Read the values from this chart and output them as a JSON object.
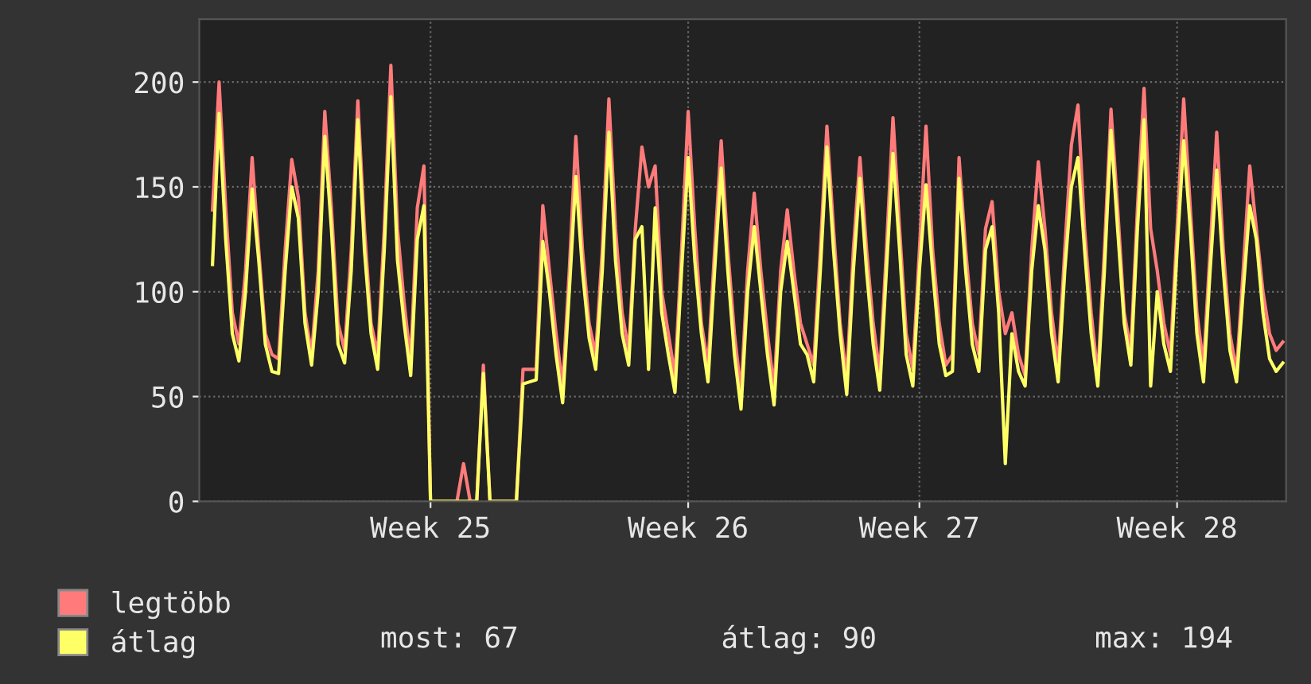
{
  "chart_data": {
    "type": "line",
    "categories": [
      null,
      null,
      null,
      null,
      null,
      null,
      null,
      null,
      null,
      null,
      null,
      null,
      null,
      null,
      null,
      null,
      null,
      null,
      null,
      null,
      null,
      null,
      null,
      null,
      null,
      null,
      null,
      null,
      null,
      null,
      null,
      null,
      null,
      "Week 25",
      null,
      null,
      null,
      null,
      null,
      null,
      null,
      null,
      null,
      null,
      null,
      null,
      null,
      null,
      null,
      null,
      null,
      null,
      null,
      null,
      null,
      null,
      null,
      null,
      null,
      null,
      null,
      null,
      null,
      null,
      null,
      null,
      null,
      null,
      null,
      null,
      null,
      null,
      "Week 26",
      null,
      null,
      null,
      null,
      null,
      null,
      null,
      null,
      null,
      null,
      null,
      null,
      null,
      null,
      null,
      null,
      null,
      null,
      null,
      null,
      null,
      null,
      null,
      null,
      null,
      null,
      null,
      null,
      null,
      null,
      null,
      null,
      null,
      null,
      "Week 27",
      null,
      null,
      null,
      null,
      null,
      null,
      null,
      null,
      null,
      null,
      null,
      null,
      null,
      null,
      null,
      null,
      null,
      null,
      null,
      null,
      null,
      null,
      null,
      null,
      null,
      null,
      null,
      null,
      null,
      null,
      null,
      null,
      null,
      null,
      null,
      null,
      null,
      null,
      "Week 28",
      null,
      null,
      null,
      null,
      null,
      null,
      null,
      null,
      null,
      null,
      null,
      null,
      null,
      null,
      null,
      null
    ],
    "series": [
      {
        "name": "legtöbb",
        "color": "#ff7b7b",
        "values": [
          139,
          200,
          140,
          90,
          75,
          110,
          164,
          120,
          80,
          70,
          68,
          120,
          163,
          145,
          90,
          70,
          110,
          186,
          140,
          85,
          72,
          120,
          191,
          130,
          85,
          70,
          130,
          208,
          130,
          95,
          67,
          140,
          160,
          0,
          0,
          0,
          0,
          0,
          18,
          0,
          0,
          65,
          0,
          0,
          0,
          0,
          0,
          63,
          63,
          63,
          141,
          110,
          80,
          55,
          110,
          174,
          120,
          85,
          70,
          120,
          192,
          130,
          90,
          72,
          130,
          169,
          150,
          160,
          100,
          80,
          60,
          120,
          186,
          130,
          85,
          65,
          120,
          172,
          120,
          80,
          52,
          110,
          147,
          110,
          80,
          54,
          110,
          139,
          110,
          85,
          75,
          65,
          120,
          179,
          130,
          85,
          59,
          120,
          164,
          120,
          85,
          61,
          120,
          183,
          130,
          80,
          63,
          120,
          179,
          120,
          85,
          65,
          70,
          164,
          120,
          85,
          70,
          130,
          143,
          100,
          80,
          90,
          70,
          60,
          120,
          162,
          130,
          90,
          65,
          120,
          170,
          189,
          130,
          90,
          60,
          120,
          187,
          140,
          90,
          72,
          140,
          197,
          130,
          110,
          85,
          70,
          130,
          192,
          140,
          90,
          65,
          120,
          176,
          120,
          80,
          62,
          110,
          160,
          130,
          100,
          80,
          72,
          76
        ]
      },
      {
        "name": "átlag",
        "color": "#ffff66",
        "values": [
          113,
          185,
          125,
          80,
          67,
          100,
          149,
          115,
          75,
          62,
          61,
          110,
          150,
          135,
          85,
          65,
          100,
          174,
          130,
          75,
          66,
          110,
          182,
          120,
          80,
          63,
          120,
          193,
          115,
          85,
          60,
          125,
          141,
          0,
          0,
          0,
          0,
          0,
          0,
          0,
          0,
          61,
          0,
          0,
          0,
          0,
          0,
          56,
          57,
          58,
          124,
          100,
          70,
          47,
          100,
          155,
          110,
          78,
          63,
          110,
          176,
          115,
          80,
          65,
          125,
          131,
          63,
          140,
          90,
          70,
          52,
          110,
          164,
          115,
          80,
          57,
          110,
          159,
          110,
          70,
          44,
          100,
          131,
          100,
          70,
          46,
          100,
          124,
          100,
          75,
          70,
          57,
          110,
          169,
          120,
          80,
          51,
          110,
          154,
          110,
          75,
          53,
          110,
          166,
          120,
          70,
          55,
          110,
          151,
          110,
          75,
          60,
          62,
          154,
          110,
          75,
          62,
          120,
          131,
          90,
          18,
          80,
          62,
          55,
          110,
          141,
          120,
          80,
          57,
          110,
          150,
          164,
          120,
          80,
          55,
          110,
          177,
          130,
          85,
          65,
          130,
          182,
          55,
          100,
          75,
          62,
          120,
          172,
          130,
          80,
          57,
          110,
          158,
          110,
          72,
          57,
          100,
          141,
          125,
          90,
          68,
          62,
          66
        ]
      }
    ],
    "ylim": [
      0,
      230
    ],
    "yticks": [
      0,
      50,
      100,
      150,
      200
    ],
    "grid": true,
    "legend": "bottom",
    "line_style": "solid",
    "marker": "none",
    "annotations": [
      "most: 67",
      "átlag: 90",
      "max: 194"
    ]
  }
}
